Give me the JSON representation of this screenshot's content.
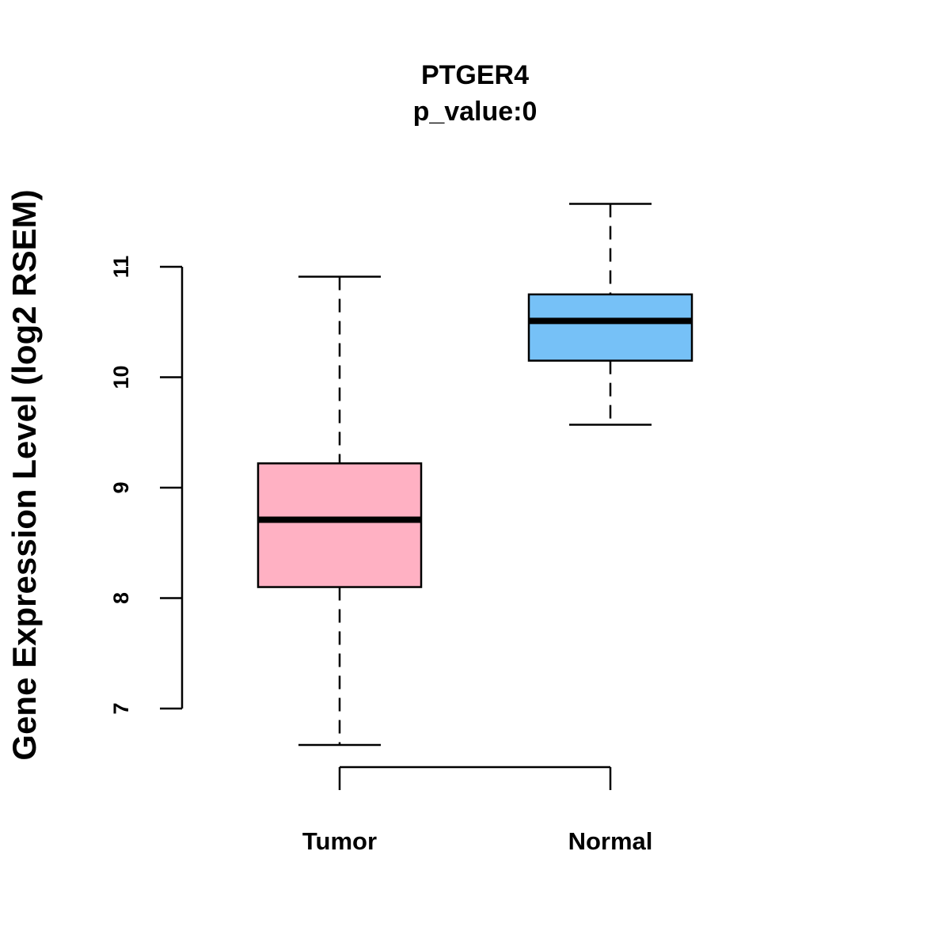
{
  "chart_data": {
    "type": "box",
    "title": "PTGER4",
    "subtitle": "p_value:0",
    "xlabel": "",
    "ylabel": "Gene Expression Level (log2 RSEM)",
    "ylim": [
      6.5,
      11.7
    ],
    "yticks": [
      7,
      8,
      9,
      10,
      11
    ],
    "grid": false,
    "categories": [
      "Tumor",
      "Normal"
    ],
    "series": [
      {
        "name": "Tumor",
        "color": "#FFB1C3",
        "whisker_low": 6.67,
        "q1": 8.1,
        "median": 8.71,
        "q3": 9.22,
        "whisker_high": 10.91
      },
      {
        "name": "Normal",
        "color": "#76C1F7",
        "whisker_low": 9.57,
        "q1": 10.15,
        "median": 10.51,
        "q3": 10.75,
        "whisker_high": 11.57
      }
    ]
  }
}
